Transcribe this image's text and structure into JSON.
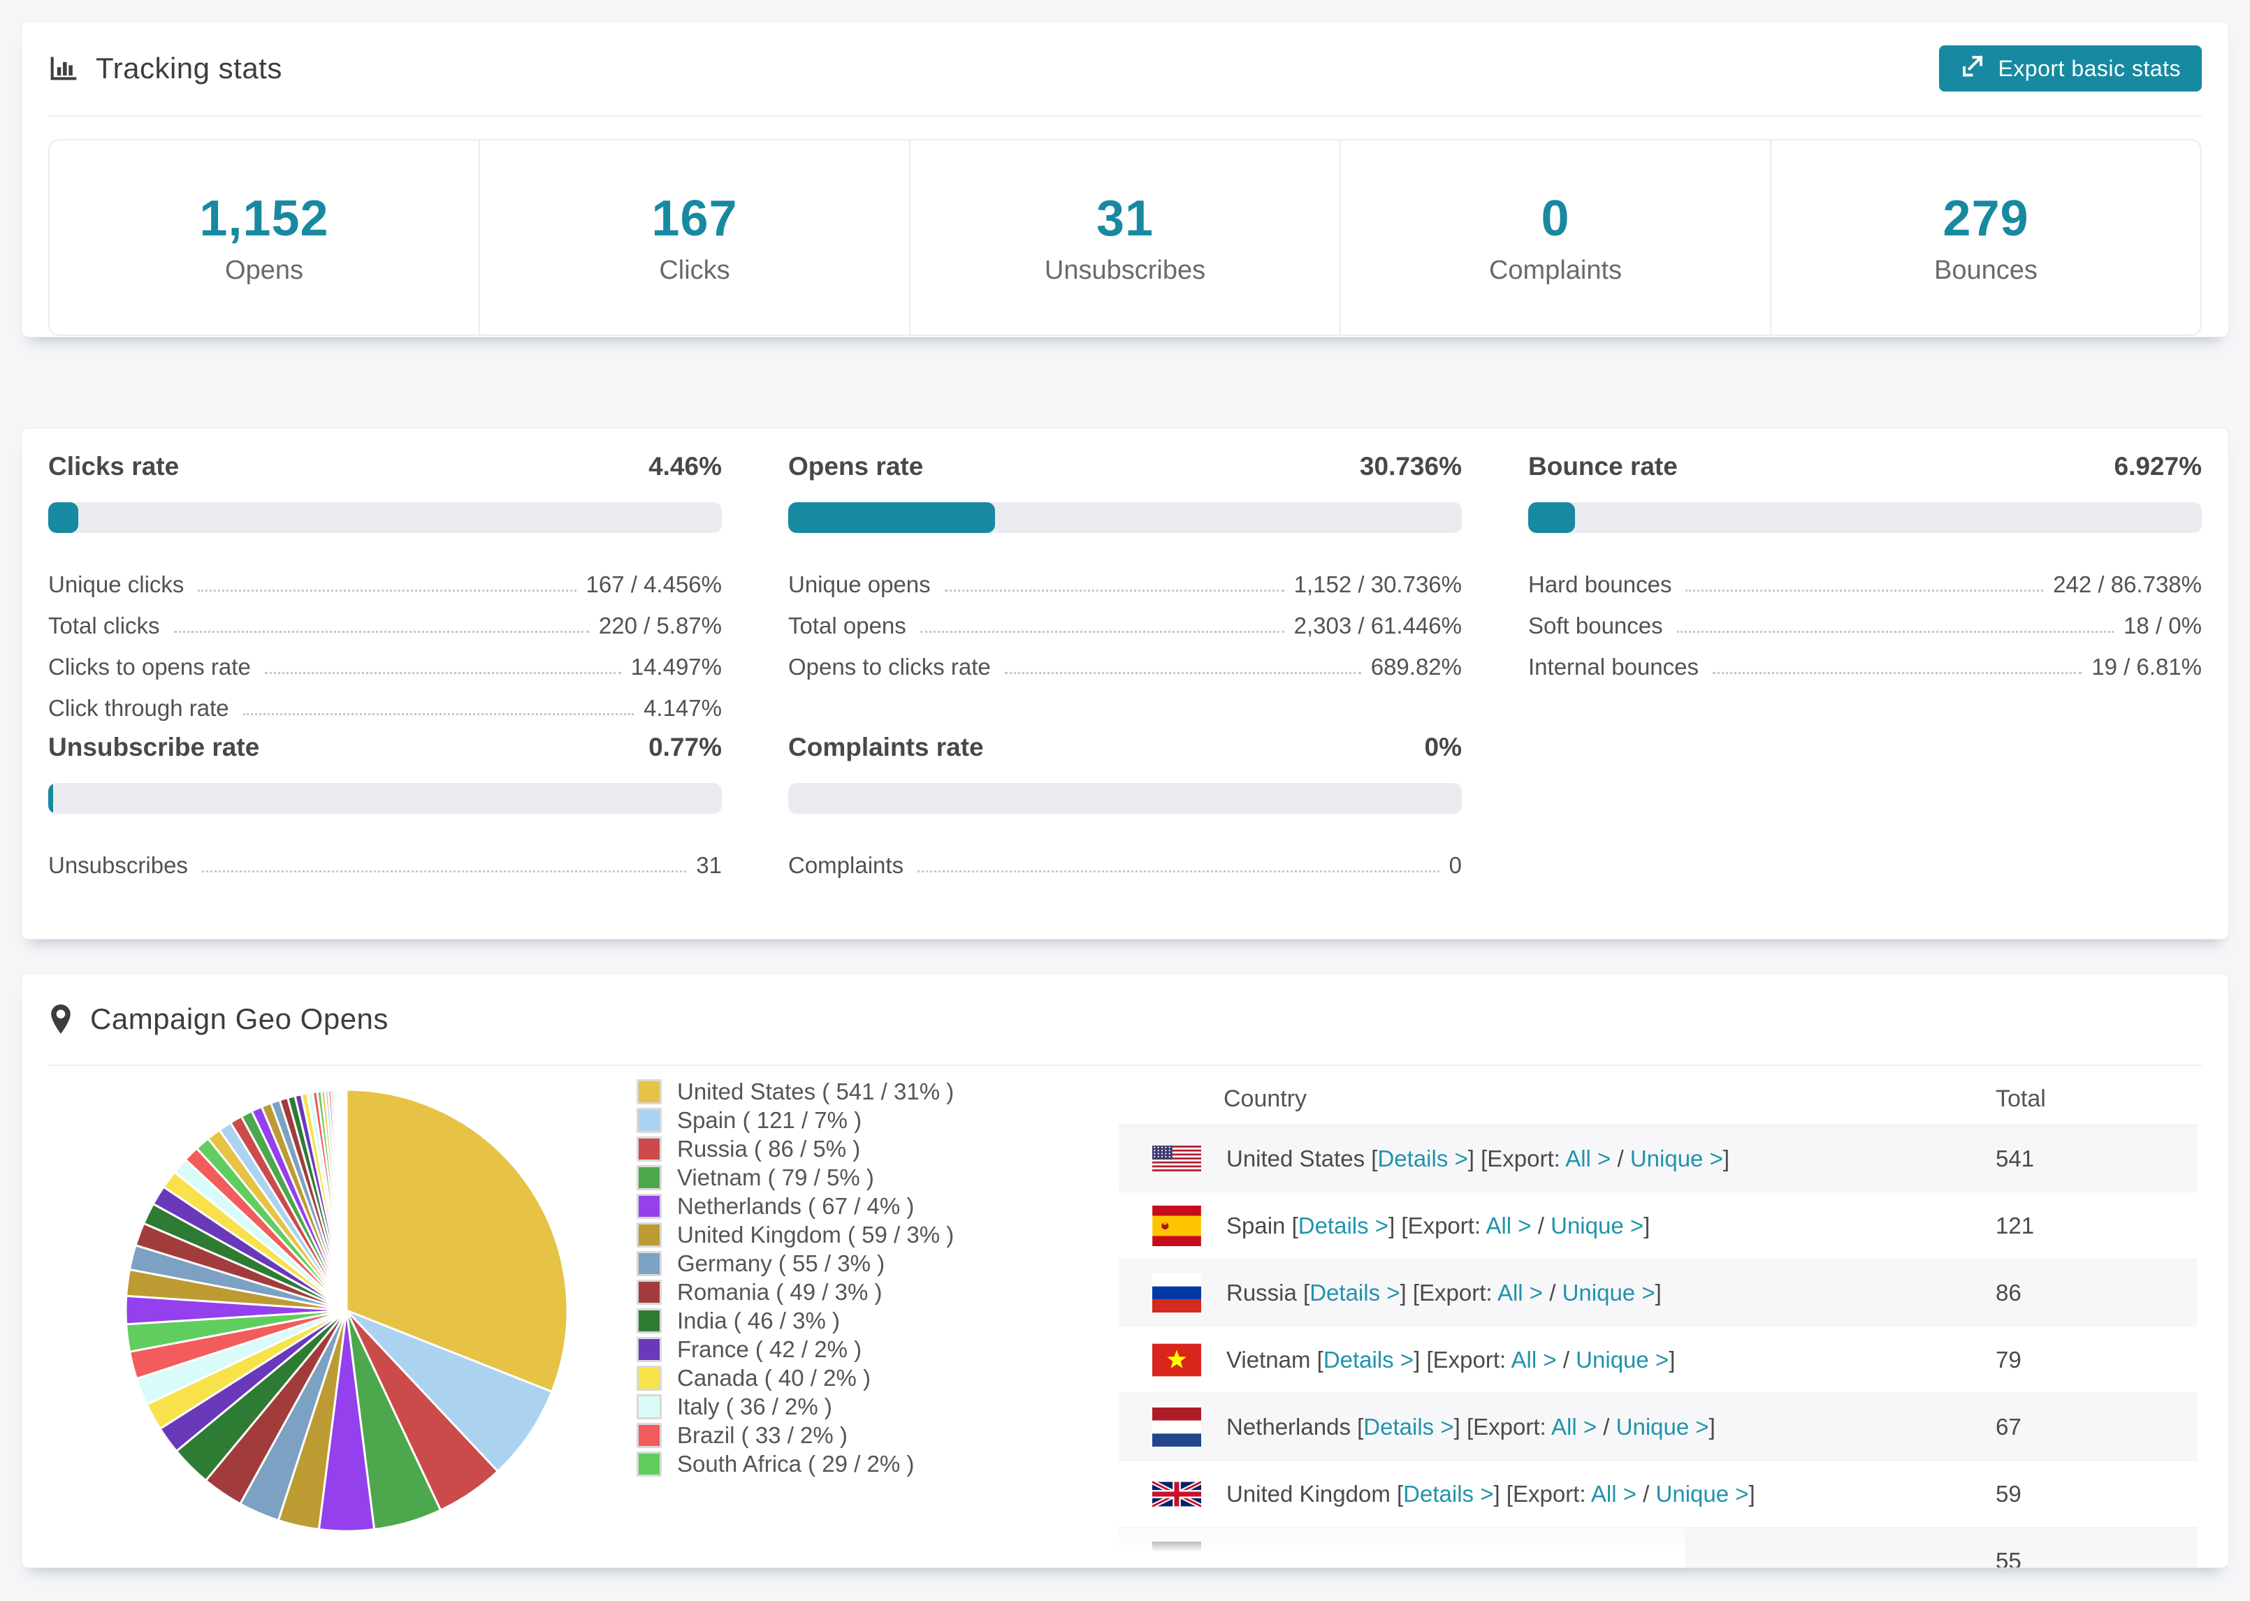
{
  "tracking_stats": {
    "title": "Tracking stats",
    "export_button_label": "Export basic stats",
    "summary": [
      {
        "value": "1,152",
        "label": "Opens"
      },
      {
        "value": "167",
        "label": "Clicks"
      },
      {
        "value": "31",
        "label": "Unsubscribes"
      },
      {
        "value": "0",
        "label": "Complaints"
      },
      {
        "value": "279",
        "label": "Bounces"
      }
    ]
  },
  "rates": [
    {
      "title": "Clicks rate",
      "value": "4.46%",
      "percent": 4.46,
      "rows": [
        {
          "label": "Unique clicks",
          "value": "167 / 4.456%"
        },
        {
          "label": "Total clicks",
          "value": "220 / 5.87%"
        },
        {
          "label": "Clicks to opens rate",
          "value": "14.497%"
        },
        {
          "label": "Click through rate",
          "value": "4.147%"
        }
      ]
    },
    {
      "title": "Opens rate",
      "value": "30.736%",
      "percent": 30.736,
      "rows": [
        {
          "label": "Unique opens",
          "value": "1,152 / 30.736%"
        },
        {
          "label": "Total opens",
          "value": "2,303 / 61.446%"
        },
        {
          "label": "Opens to clicks rate",
          "value": "689.82%"
        }
      ]
    },
    {
      "title": "Bounce rate",
      "value": "6.927%",
      "percent": 6.927,
      "rows": [
        {
          "label": "Hard bounces",
          "value": "242 / 86.738%"
        },
        {
          "label": "Soft bounces",
          "value": "18 / 0%"
        },
        {
          "label": "Internal bounces",
          "value": "19 / 6.81%"
        }
      ]
    },
    {
      "title": "Unsubscribe rate",
      "value": "0.77%",
      "percent": 0.77,
      "rows": [
        {
          "label": "Unsubscribes",
          "value": "31"
        }
      ]
    },
    {
      "title": "Complaints rate",
      "value": "0%",
      "percent": 0,
      "rows": [
        {
          "label": "Complaints",
          "value": "0"
        }
      ]
    }
  ],
  "geo": {
    "title": "Campaign Geo Opens",
    "accent_color": "#1789a0",
    "chart_data": {
      "type": "pie",
      "title": "Campaign Geo Opens",
      "legend_position": "right",
      "labels": [
        "United States",
        "Spain",
        "Russia",
        "Vietnam",
        "Netherlands",
        "United Kingdom",
        "Germany",
        "Romania",
        "India",
        "France",
        "Canada",
        "Italy",
        "Brazil",
        "South Africa"
      ],
      "values": [
        541,
        121,
        86,
        79,
        67,
        59,
        55,
        49,
        46,
        42,
        40,
        36,
        33,
        29
      ],
      "percents": [
        31,
        7,
        5,
        5,
        4,
        3,
        3,
        3,
        3,
        2,
        2,
        2,
        2,
        2
      ],
      "colors": [
        "#E6C245",
        "#ABD3F0",
        "#CB4B4B",
        "#4DA74D",
        "#9440ED",
        "#BD9B33",
        "#7CA1C2",
        "#A23C3C",
        "#2E7B33",
        "#6939B9",
        "#F7E24C",
        "#D9FBFA",
        "#F25C5C",
        "#5FCE5F"
      ],
      "legend_format": "{label} ( {value} / {percent}% )",
      "start_angle_deg": 0,
      "direction": "clockwise",
      "others_tail_percents": [
        1.7,
        1.6,
        1.5,
        1.4,
        1.3,
        1.2,
        1.1,
        1.0,
        0.95,
        0.9,
        0.85,
        0.8,
        0.75,
        0.7,
        0.65,
        0.6,
        0.55,
        0.5,
        0.45,
        0.4,
        0.36,
        0.32,
        0.28,
        0.25,
        0.22,
        0.2,
        0.17,
        0.15,
        0.13,
        0.11,
        0.09,
        0.08,
        0.07,
        0.06,
        0.05,
        0.05,
        0.04,
        0.04,
        0.03,
        0.03
      ]
    },
    "table": {
      "headers": [
        "Country",
        "Total"
      ],
      "link_labels": {
        "details": "Details",
        "export": "Export:",
        "all": "All",
        "unique": "Unique",
        "arrow": ">"
      },
      "rows": [
        {
          "country": "United States",
          "flag": "us",
          "total": "541"
        },
        {
          "country": "Spain",
          "flag": "es",
          "total": "121"
        },
        {
          "country": "Russia",
          "flag": "ru",
          "total": "86"
        },
        {
          "country": "Vietnam",
          "flag": "vn",
          "total": "79"
        },
        {
          "country": "Netherlands",
          "flag": "nl",
          "total": "67"
        },
        {
          "country": "United Kingdom",
          "flag": "gb",
          "total": "59"
        },
        {
          "country": "Germany",
          "flag": "de",
          "total": "55"
        }
      ]
    }
  }
}
